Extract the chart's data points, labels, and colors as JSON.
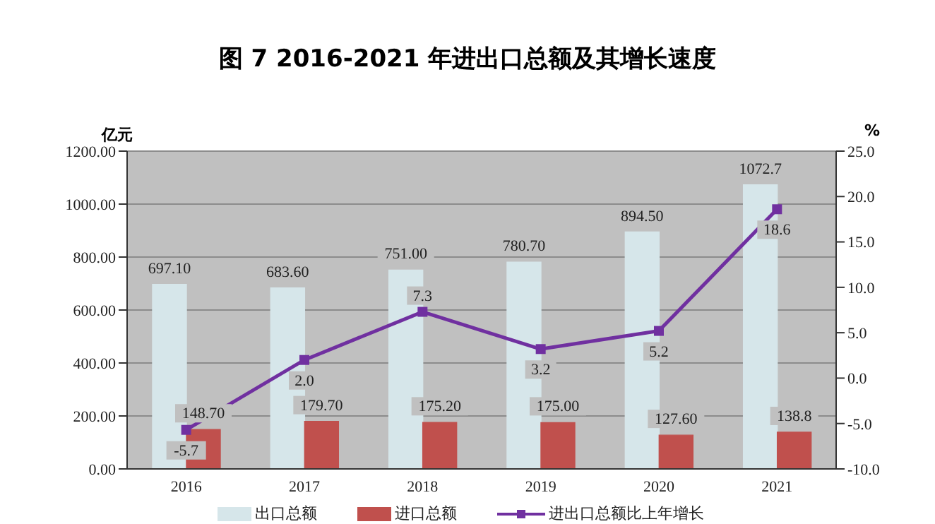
{
  "chart_data": {
    "type": "bar",
    "title": "图 7   2016-2021 年进出口总额及其增长速度",
    "categories": [
      "2016",
      "2017",
      "2018",
      "2019",
      "2020",
      "2021"
    ],
    "ylabel": "亿元",
    "y2label": "%",
    "series": [
      {
        "name": "出口总额",
        "color": "#d6e6ea",
        "values": [
          697.1,
          683.6,
          751.0,
          780.7,
          894.5,
          1072.7
        ],
        "value_labels": [
          "697.10",
          "683.60",
          "751.00",
          "780.70",
          "894.50",
          "1072.7"
        ]
      },
      {
        "name": "进口总额",
        "color": "#c0504d",
        "values": [
          148.7,
          179.7,
          175.2,
          175.0,
          127.6,
          138.8
        ],
        "value_labels": [
          "148.70",
          "179.70",
          "175.20",
          "175.00",
          "127.60",
          "138.8"
        ]
      },
      {
        "name": "进出口总额比上年增长",
        "type": "line",
        "axis": "y2",
        "color": "#7030a0",
        "marker": "square",
        "values": [
          -5.7,
          2.0,
          7.3,
          3.2,
          5.2,
          18.6
        ],
        "value_labels": [
          "-5.7",
          "2.0",
          "7.3",
          "3.2",
          "5.2",
          "18.6"
        ]
      }
    ],
    "ylim": [
      0,
      1200
    ],
    "yticks": [
      {
        "value": 0,
        "label": "0.00"
      },
      {
        "value": 200,
        "label": "200.00"
      },
      {
        "value": 400,
        "label": "400.00"
      },
      {
        "value": 600,
        "label": "600.00"
      },
      {
        "value": 800,
        "label": "800.00"
      },
      {
        "value": 1000,
        "label": "1000.00"
      },
      {
        "value": 1200,
        "label": "1200.00"
      }
    ],
    "y2lim": [
      -10,
      25
    ],
    "y2ticks": [
      {
        "value": -10,
        "label": "-10.0"
      },
      {
        "value": -5,
        "label": "-5.0"
      },
      {
        "value": 0,
        "label": "0.0"
      },
      {
        "value": 5,
        "label": "5.0"
      },
      {
        "value": 10,
        "label": "10.0"
      },
      {
        "value": 15,
        "label": "15.0"
      },
      {
        "value": 20,
        "label": "20.0"
      },
      {
        "value": 25,
        "label": "25.0"
      }
    ],
    "grid": "y",
    "legend": "bottom"
  }
}
